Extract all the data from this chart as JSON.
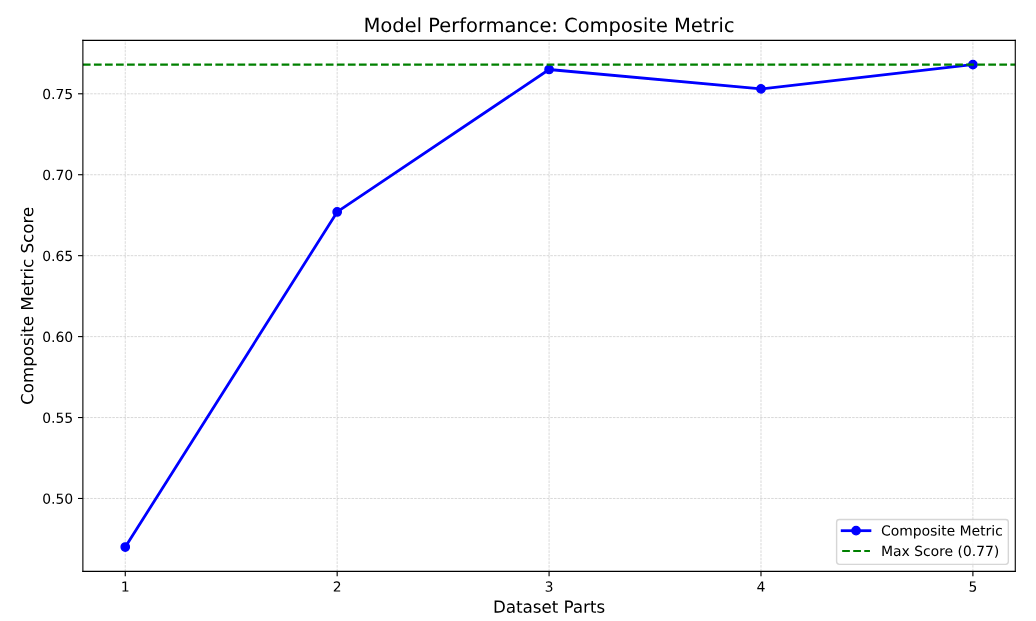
{
  "chart_data": {
    "type": "line",
    "title": "Model Performance: Composite Metric",
    "xlabel": "Dataset Parts",
    "ylabel": "Composite Metric Score",
    "x": [
      1,
      2,
      3,
      4,
      5
    ],
    "series": [
      {
        "name": "Composite Metric",
        "color": "#0000ff",
        "values": [
          0.47,
          0.677,
          0.765,
          0.753,
          0.768
        ]
      }
    ],
    "ref_lines": [
      {
        "axis": "y",
        "value": 0.768,
        "label": "Max Score (0.77)",
        "color": "#008000",
        "line_style": "dashed"
      }
    ],
    "xlim": [
      0.8,
      5.2
    ],
    "xticks": [
      1,
      2,
      3,
      4,
      5
    ],
    "ylim": [
      0.455,
      0.783
    ],
    "yticks": [
      {
        "value": 0.5,
        "label": "0.50"
      },
      {
        "value": 0.55,
        "label": "0.55"
      },
      {
        "value": 0.6,
        "label": "0.60"
      },
      {
        "value": 0.65,
        "label": "0.65"
      },
      {
        "value": 0.7,
        "label": "0.70"
      },
      {
        "value": 0.75,
        "label": "0.75"
      }
    ],
    "grid": true,
    "legend": "lower right",
    "marker": "circle",
    "line_style": "solid"
  }
}
